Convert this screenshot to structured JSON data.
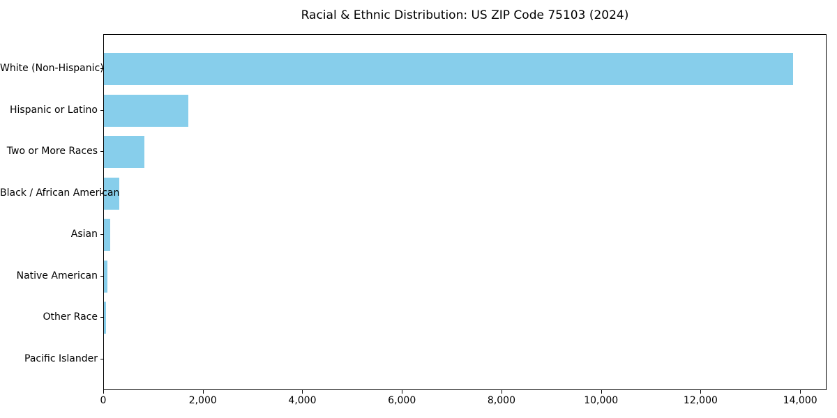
{
  "title": "Racial & Ethnic Distribution: US ZIP Code 75103 (2024)",
  "chart_data": {
    "type": "bar",
    "orientation": "horizontal",
    "title": "Racial & Ethnic Distribution: US ZIP Code 75103 (2024)",
    "xlabel": "",
    "ylabel": "",
    "categories": [
      "White (Non-Hispanic)",
      "Hispanic or Latino",
      "Two or More Races",
      "Black / African American",
      "Asian",
      "Native American",
      "Other Race",
      "Pacific Islander"
    ],
    "values": [
      13840,
      1700,
      810,
      310,
      130,
      65,
      40,
      0
    ],
    "xlim": [
      0,
      14530
    ],
    "x_ticks": [
      0,
      2000,
      4000,
      6000,
      8000,
      10000,
      12000,
      14000
    ],
    "x_tick_labels": [
      "0",
      "2,000",
      "4,000",
      "6,000",
      "8,000",
      "10,000",
      "12,000",
      "14,000"
    ],
    "bar_color": "#87CEEB",
    "grid": false,
    "legend": null,
    "background_color": "#ffffff",
    "spine_color": "#000000"
  }
}
